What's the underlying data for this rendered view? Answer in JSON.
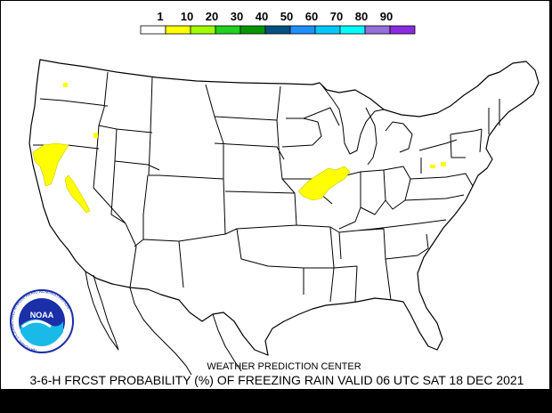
{
  "legend": {
    "bins": [
      {
        "label": "1",
        "color": "#ffffff"
      },
      {
        "label": "10",
        "color": "#ffff00"
      },
      {
        "label": "20",
        "color": "#a0ff00"
      },
      {
        "label": "30",
        "color": "#1ed21e"
      },
      {
        "label": "40",
        "color": "#009600"
      },
      {
        "label": "50",
        "color": "#005082"
      },
      {
        "label": "60",
        "color": "#1e90ff"
      },
      {
        "label": "70",
        "color": "#00c8ff"
      },
      {
        "label": "80",
        "color": "#00ffff"
      },
      {
        "label": "90",
        "color": "#9370db"
      },
      {
        "label": "",
        "color": "#8a2be2"
      }
    ]
  },
  "credit": "WEATHER PREDICTION CENTER",
  "title": "3-6-H FRCST PROBABILITY (%) OF FREEZING RAIN VALID 06 UTC SAT 18 DEC 2021",
  "logo": {
    "text": "NOAA",
    "ring_text": "NATIONAL OCEANIC AND ATMOSPHERIC ADMINISTRATION"
  },
  "areas": [
    {
      "name": "california-sierra",
      "probability": 10
    },
    {
      "name": "nevada-sierra",
      "probability": 10
    },
    {
      "name": "missouri-illinois-indiana",
      "probability": 10
    },
    {
      "name": "pennsylvania-spots",
      "probability": 10
    },
    {
      "name": "washington-spot",
      "probability": 10
    },
    {
      "name": "oregon-spot",
      "probability": 10
    }
  ],
  "colors": {
    "outline": "#000000",
    "background": "#ffffff",
    "frame": "#000000"
  }
}
